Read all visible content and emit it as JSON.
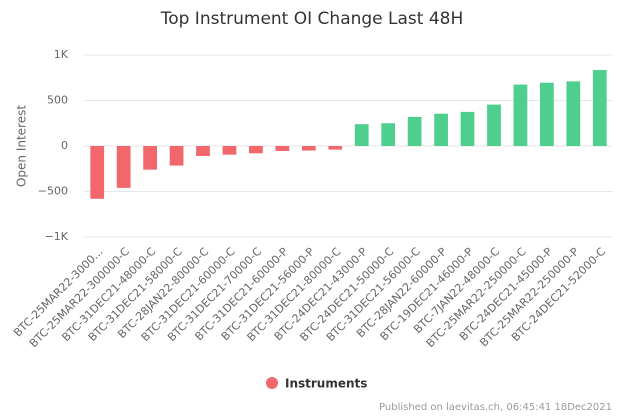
{
  "chart_data": {
    "type": "bar",
    "title": "Top Instrument OI Change Last 48H",
    "y_label": "Open Interest",
    "categories": [
      "BTC-25MAR22-3000...",
      "BTC-25MAR22-300000-C",
      "BTC-31DEC21-48000-C",
      "BTC-31DEC21-58000-C",
      "BTC-28JAN22-80000-C",
      "BTC-31DEC21-60000-C",
      "BTC-31DEC21-70000-C",
      "BTC-31DEC21-60000-P",
      "BTC-31DEC21-56000-P",
      "BTC-31DEC21-80000-C",
      "BTC-24DEC21-43000-P",
      "BTC-24DEC21-50000-C",
      "BTC-31DEC21-56000-C",
      "BTC-28JAN22-60000-P",
      "BTC-19DEC21-46000-P",
      "BTC-7JAN22-48000-C",
      "BTC-25MAR22-250000-C",
      "BTC-24DEC21-45000-P",
      "BTC-25MAR22-250000-P",
      "BTC-24DEC21-52000-C"
    ],
    "series": [
      {
        "name": "Instruments",
        "color": "#f2676b",
        "positive_color": "#4fcf8e",
        "values": [
          -580,
          -460,
          -260,
          -215,
          -110,
          -95,
          -80,
          -55,
          -50,
          -40,
          240,
          250,
          320,
          355,
          375,
          455,
          675,
          695,
          710,
          835
        ]
      }
    ],
    "ylim": [
      -1000,
      1000
    ],
    "yticks": [
      {
        "value": -1000,
        "label": "−1K"
      },
      {
        "value": -500,
        "label": "−500"
      },
      0,
      500,
      {
        "value": 1000,
        "label": "1K"
      }
    ],
    "grid": true,
    "legend": "bottom",
    "credits": "Published on laevitas.ch, 06:45:41 18Dec2021"
  }
}
